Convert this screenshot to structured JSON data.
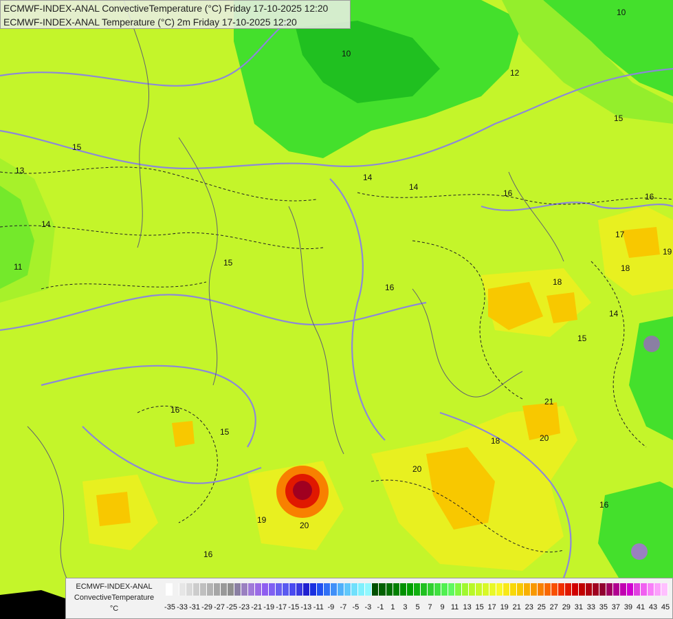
{
  "title": {
    "line1": "ECMWF-INDEX-ANAL ConvectiveTemperature (°C) Friday 17-10-2025 12:20",
    "line2": "ECMWF-INDEX-ANAL Temperature (°C) 2m Friday 17-10-2025 12:20"
  },
  "legend": {
    "line1": "ECMWF-INDEX-ANAL",
    "line2": "ConvectiveTemperature",
    "unit": "°C",
    "tick_labels": [
      "-35",
      "-33",
      "-31",
      "-29",
      "-27",
      "-25",
      "-23",
      "-21",
      "-19",
      "-17",
      "-15",
      "-13",
      "-11",
      "-9",
      "-7",
      "-5",
      "-3",
      "-1",
      "1",
      "3",
      "5",
      "7",
      "9",
      "11",
      "13",
      "15",
      "17",
      "19",
      "21",
      "23",
      "25",
      "27",
      "29",
      "31",
      "33",
      "35",
      "37",
      "39",
      "41",
      "43",
      "45"
    ],
    "colors": [
      "#ffffff",
      "#f2f2f2",
      "#e6e6e6",
      "#d9d9d9",
      "#cccccc",
      "#bfbfbf",
      "#b3b3b3",
      "#a6a6a6",
      "#999999",
      "#8f8f8f",
      "#8a7fa3",
      "#9a80c0",
      "#a07ad8",
      "#9a6ae6",
      "#8f5ef0",
      "#8060f2",
      "#6a60f0",
      "#5a5af0",
      "#4a4af0",
      "#3a3ae0",
      "#2020d0",
      "#1a30e0",
      "#2050f0",
      "#3070f5",
      "#4090f8",
      "#50b0fa",
      "#60c8fb",
      "#70e0fc",
      "#80f0fd",
      "#90f8fe",
      "#005000",
      "#006000",
      "#007000",
      "#008000",
      "#009000",
      "#00a000",
      "#10b010",
      "#20c020",
      "#30d030",
      "#40e040",
      "#50f050",
      "#60f860",
      "#80f840",
      "#a0f830",
      "#b8f828",
      "#c8f828",
      "#d8f828",
      "#e8f828",
      "#f8f828",
      "#f8e818",
      "#f8d808",
      "#f8c800",
      "#f8b000",
      "#f89800",
      "#f88000",
      "#f86800",
      "#f85000",
      "#f03000",
      "#e01800",
      "#d00000",
      "#c00000",
      "#b00010",
      "#a00020",
      "#900030",
      "#a00060",
      "#b00090",
      "#c000b0",
      "#d000d0",
      "#e040e0",
      "#f060f0",
      "#f880f8",
      "#fca0fc",
      "#ffc0ff"
    ]
  },
  "contour_labels": [
    "10",
    "11",
    "12",
    "13",
    "14",
    "15",
    "16",
    "17",
    "18",
    "19",
    "20",
    "21"
  ],
  "colors": {
    "field_base": "#c4f52a",
    "field_green": "#44e02c",
    "field_light_green": "#94ee2c",
    "field_yellow": "#e8f020",
    "field_orange": "#f8c800",
    "field_red": "#c00000",
    "isotherm": "#8c88d8",
    "border": "#606070"
  }
}
